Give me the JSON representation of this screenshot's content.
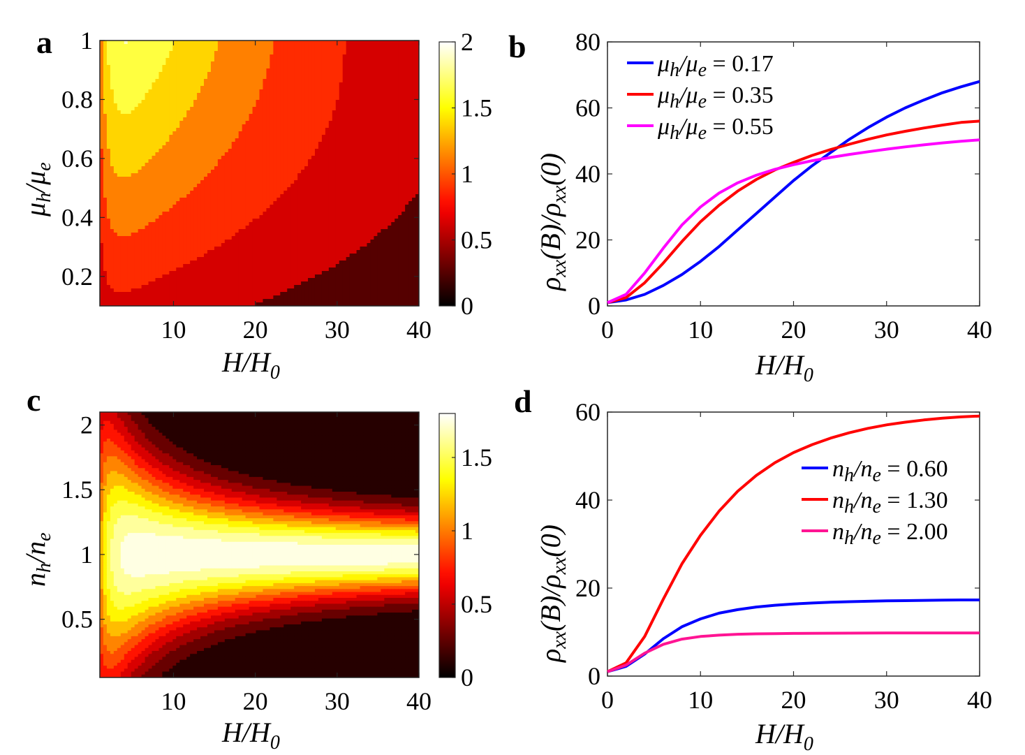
{
  "colors": {
    "blue": "#0000ff",
    "red": "#ff0000",
    "magenta": "#ff00ff",
    "pink": "#ff1493"
  },
  "panels": {
    "a": "a",
    "b": "b",
    "c": "c",
    "d": "d"
  },
  "chart_data": [
    {
      "id": "a",
      "type": "heatmap",
      "colormap": "hot",
      "xlabel": "H/H",
      "xlabel_sub": "0",
      "ylabel": "μ/μ",
      "ylabel_sub1": "h",
      "ylabel_sub2": "e",
      "xlim": [
        1,
        40
      ],
      "ylim": [
        0.1,
        1.0
      ],
      "xticks": [
        10,
        20,
        30,
        40
      ],
      "xtick_labels": [
        "10",
        "20",
        "30",
        "40"
      ],
      "yticks": [
        0.2,
        0.4,
        0.6,
        0.8,
        1.0
      ],
      "ytick_labels": [
        "0.2",
        "0.4",
        "0.6",
        "0.8",
        "1"
      ],
      "colorbar_ticks": [
        0,
        0.5,
        1,
        1.5,
        2
      ],
      "colorbar_tick_labels": [
        "0",
        "0.5",
        "1",
        "1.5",
        "2"
      ],
      "clim": [
        0,
        2
      ],
      "levels": [
        0.5,
        0.75,
        1.0,
        1.25,
        1.5,
        1.75
      ],
      "max_value": 1.95
    },
    {
      "id": "b",
      "type": "line",
      "xlabel": "H/H",
      "xlabel_sub": "0",
      "ylabel": "ρxx(B)/ρxx(0)",
      "xlim": [
        0,
        40
      ],
      "ylim": [
        0,
        80
      ],
      "xticks": [
        0,
        10,
        20,
        30,
        40
      ],
      "xtick_labels": [
        "0",
        "10",
        "20",
        "30",
        "40"
      ],
      "yticks": [
        0,
        20,
        40,
        60,
        80
      ],
      "ytick_labels": [
        "0",
        "20",
        "40",
        "60",
        "80"
      ],
      "legend_position": "top-left",
      "series": [
        {
          "name": "μh/μe = 0.17",
          "legend_prefix": "μ",
          "legend_sub1": "h",
          "legend_mid": "/μ",
          "legend_sub2": "e",
          "legend_value": " = 0.17",
          "color": "#0000ff",
          "x": [
            0,
            2,
            4,
            6,
            8,
            10,
            12,
            14,
            16,
            18,
            20,
            22,
            24,
            26,
            28,
            30,
            32,
            34,
            36,
            38,
            40
          ],
          "y": [
            1,
            1.8,
            3.5,
            6.2,
            9.5,
            13.5,
            18,
            23,
            28,
            33,
            38,
            42.5,
            46.5,
            50.5,
            54,
            57.2,
            60,
            62.4,
            64.6,
            66.4,
            68
          ]
        },
        {
          "name": "μh/μe = 0.35",
          "legend_prefix": "μ",
          "legend_sub1": "h",
          "legend_mid": "/μ",
          "legend_sub2": "e",
          "legend_value": " = 0.35",
          "color": "#ff0000",
          "x": [
            0,
            2,
            4,
            6,
            8,
            10,
            12,
            14,
            16,
            18,
            20,
            22,
            24,
            26,
            28,
            30,
            32,
            34,
            36,
            38,
            40
          ],
          "y": [
            1,
            2.5,
            7,
            13,
            19.5,
            25.5,
            30.5,
            34.8,
            38.3,
            41.2,
            43.5,
            45.6,
            47.4,
            49,
            50.5,
            51.8,
            52.9,
            53.9,
            54.8,
            55.6,
            56
          ]
        },
        {
          "name": "μh/μe = 0.55",
          "legend_prefix": "μ",
          "legend_sub1": "h",
          "legend_mid": "/μ",
          "legend_sub2": "e",
          "legend_value": " = 0.55",
          "color": "#ff00ff",
          "x": [
            0,
            2,
            4,
            6,
            8,
            10,
            12,
            14,
            16,
            18,
            20,
            22,
            24,
            26,
            28,
            30,
            32,
            34,
            36,
            38,
            40
          ],
          "y": [
            1,
            3.5,
            10,
            17.5,
            24.5,
            30,
            34.2,
            37.3,
            39.6,
            41.4,
            42.8,
            44,
            45,
            45.9,
            46.7,
            47.5,
            48.2,
            48.8,
            49.4,
            49.9,
            50.3
          ]
        }
      ]
    },
    {
      "id": "c",
      "type": "heatmap",
      "colormap": "hot",
      "xlabel": "H/H",
      "xlabel_sub": "0",
      "ylabel": "n/n",
      "ylabel_sub1": "h",
      "ylabel_sub2": "e",
      "xlim": [
        1,
        40
      ],
      "ylim": [
        0.05,
        2.1
      ],
      "xticks": [
        10,
        20,
        30,
        40
      ],
      "xtick_labels": [
        "10",
        "20",
        "30",
        "40"
      ],
      "yticks": [
        0.5,
        1.0,
        1.5,
        2.0
      ],
      "ytick_labels": [
        "0.5",
        "1",
        "1.5",
        "2"
      ],
      "colorbar_ticks": [
        0,
        0.5,
        1,
        1.5
      ],
      "colorbar_tick_labels": [
        "0",
        "0.5",
        "1",
        "1.5"
      ],
      "clim": [
        0,
        1.8
      ],
      "levels": [
        0.2,
        0.35,
        0.5,
        0.65,
        0.8,
        0.95,
        1.1,
        1.25,
        1.4,
        1.55,
        1.7
      ],
      "max_value": 1.8
    },
    {
      "id": "d",
      "type": "line",
      "xlabel": "H/H",
      "xlabel_sub": "0",
      "ylabel": "ρxx(B)/ρxx(0)",
      "xlim": [
        0,
        40
      ],
      "ylim": [
        0,
        60
      ],
      "xticks": [
        0,
        10,
        20,
        30,
        40
      ],
      "xtick_labels": [
        "0",
        "10",
        "20",
        "30",
        "40"
      ],
      "yticks": [
        0,
        20,
        40,
        60
      ],
      "ytick_labels": [
        "0",
        "20",
        "40",
        "60"
      ],
      "legend_position": "right",
      "series": [
        {
          "name": "nh/ne = 0.60",
          "legend_prefix": "n",
          "legend_sub1": "h",
          "legend_mid": "/n",
          "legend_sub2": "e",
          "legend_value": " = 0.60",
          "color": "#0000ff",
          "x": [
            0,
            2,
            4,
            6,
            8,
            10,
            12,
            14,
            16,
            18,
            20,
            22,
            24,
            26,
            28,
            30,
            32,
            34,
            36,
            38,
            40
          ],
          "y": [
            1,
            2.2,
            5,
            8.5,
            11.2,
            13,
            14.3,
            15.1,
            15.7,
            16.1,
            16.4,
            16.6,
            16.8,
            16.9,
            17,
            17.1,
            17.15,
            17.2,
            17.25,
            17.3,
            17.3
          ]
        },
        {
          "name": "nh/ne = 1.30",
          "legend_prefix": "n",
          "legend_sub1": "h",
          "legend_mid": "/n",
          "legend_sub2": "e",
          "legend_value": " = 1.30",
          "color": "#ff0000",
          "x": [
            0,
            2,
            4,
            6,
            8,
            10,
            12,
            14,
            16,
            18,
            20,
            22,
            24,
            26,
            28,
            30,
            32,
            34,
            36,
            38,
            40
          ],
          "y": [
            1,
            3,
            9,
            17.5,
            25.5,
            32,
            37.5,
            42,
            45.6,
            48.5,
            50.8,
            52.6,
            54.1,
            55.3,
            56.3,
            57.1,
            57.7,
            58.2,
            58.6,
            58.9,
            59.1
          ]
        },
        {
          "name": "nh/ne = 2.00",
          "legend_prefix": "n",
          "legend_sub1": "h",
          "legend_mid": "/n",
          "legend_sub2": "e",
          "legend_value": " = 2.00",
          "color": "#ff1493",
          "x": [
            0,
            2,
            4,
            6,
            8,
            10,
            12,
            14,
            16,
            18,
            20,
            22,
            24,
            26,
            28,
            30,
            32,
            34,
            36,
            38,
            40
          ],
          "y": [
            1,
            2.5,
            5.2,
            7.2,
            8.4,
            9,
            9.3,
            9.5,
            9.6,
            9.65,
            9.7,
            9.72,
            9.74,
            9.76,
            9.78,
            9.8,
            9.8,
            9.8,
            9.8,
            9.8,
            9.8
          ]
        }
      ]
    }
  ]
}
